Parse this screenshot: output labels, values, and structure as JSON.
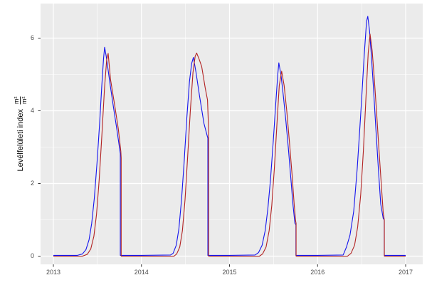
{
  "figure": {
    "background": "#FFFFFF",
    "panel_background": "#EBEBEB",
    "grid_color": "#FFFFFF",
    "tick_mark_color": "#333333",
    "tick_label_color": "#4D4D4D"
  },
  "y_axis": {
    "title_text": "Levélfelületi index",
    "fraction_numerator": "m²",
    "fraction_denominator": "m²"
  },
  "chart_data": {
    "type": "line",
    "title": "",
    "xlabel": "",
    "ylabel": "Levélfelületi index (m²/m²)",
    "grid": true,
    "legend": "none",
    "x_domain": [
      2012.8545,
      2017.1939
    ],
    "y_domain": [
      -0.2255,
      6.951
    ],
    "x_major_ticks": [
      2013,
      2014,
      2015,
      2016,
      2017
    ],
    "x_tick_labels": [
      "2013",
      "2014",
      "2015",
      "2016",
      "2017"
    ],
    "x_minor_ticks": [
      2013.5,
      2014.5,
      2015.5,
      2016.5
    ],
    "y_major_ticks": [
      0,
      2,
      4,
      6
    ],
    "y_tick_labels": [
      "0",
      "2",
      "4",
      "6"
    ],
    "y_minor_ticks": [
      1,
      3,
      5
    ],
    "series": [
      {
        "name": "series-blue",
        "color": "#1414EE",
        "points": [
          [
            2013.0,
            0.02
          ],
          [
            2013.27,
            0.02
          ],
          [
            2013.33,
            0.06
          ],
          [
            2013.37,
            0.18
          ],
          [
            2013.405,
            0.45
          ],
          [
            2013.435,
            0.9
          ],
          [
            2013.465,
            1.6
          ],
          [
            2013.495,
            2.55
          ],
          [
            2013.525,
            3.65
          ],
          [
            2013.55,
            4.7
          ],
          [
            2013.57,
            5.45
          ],
          [
            2013.582,
            5.75
          ],
          [
            2013.6,
            5.5
          ],
          [
            2013.644,
            4.73
          ],
          [
            2013.684,
            4.07
          ],
          [
            2013.725,
            3.42
          ],
          [
            2013.76,
            2.82
          ],
          [
            2013.76,
            0.02
          ],
          [
            2014.0,
            0.02
          ],
          [
            2014.33,
            0.03
          ],
          [
            2014.36,
            0.08
          ],
          [
            2014.395,
            0.3
          ],
          [
            2014.425,
            0.75
          ],
          [
            2014.455,
            1.55
          ],
          [
            2014.485,
            2.6
          ],
          [
            2014.515,
            3.8
          ],
          [
            2014.545,
            4.8
          ],
          [
            2014.57,
            5.3
          ],
          [
            2014.59,
            5.47
          ],
          [
            2014.62,
            5.05
          ],
          [
            2014.66,
            4.4
          ],
          [
            2014.71,
            3.65
          ],
          [
            2014.75,
            3.28
          ],
          [
            2014.754,
            3.25
          ],
          [
            2014.754,
            0.02
          ],
          [
            2015.0,
            0.02
          ],
          [
            2015.29,
            0.03
          ],
          [
            2015.33,
            0.1
          ],
          [
            2015.37,
            0.3
          ],
          [
            2015.405,
            0.7
          ],
          [
            2015.435,
            1.3
          ],
          [
            2015.465,
            2.1
          ],
          [
            2015.495,
            3.1
          ],
          [
            2015.525,
            4.2
          ],
          [
            2015.548,
            5.0
          ],
          [
            2015.56,
            5.32
          ],
          [
            2015.586,
            4.96
          ],
          [
            2015.613,
            4.37
          ],
          [
            2015.64,
            3.72
          ],
          [
            2015.667,
            3.0
          ],
          [
            2015.694,
            2.21
          ],
          [
            2015.72,
            1.43
          ],
          [
            2015.742,
            0.91
          ],
          [
            2015.754,
            0.86
          ],
          [
            2015.754,
            0.02
          ],
          [
            2016.0,
            0.02
          ],
          [
            2016.29,
            0.03
          ],
          [
            2016.328,
            0.25
          ],
          [
            2016.368,
            0.58
          ],
          [
            2016.41,
            1.23
          ],
          [
            2016.45,
            2.41
          ],
          [
            2016.49,
            3.91
          ],
          [
            2016.53,
            5.55
          ],
          [
            2016.556,
            6.46
          ],
          [
            2016.57,
            6.6
          ],
          [
            2016.59,
            6.2
          ],
          [
            2016.61,
            5.55
          ],
          [
            2016.636,
            4.57
          ],
          [
            2016.663,
            3.46
          ],
          [
            2016.69,
            2.41
          ],
          [
            2016.717,
            1.43
          ],
          [
            2016.745,
            1.04
          ],
          [
            2016.757,
            1.0
          ],
          [
            2016.757,
            0.02
          ],
          [
            2017.0,
            0.02
          ]
        ]
      },
      {
        "name": "series-red",
        "color": "#B22222",
        "points": [
          [
            2013.0,
            0.0
          ],
          [
            2013.33,
            0.0
          ],
          [
            2013.385,
            0.05
          ],
          [
            2013.425,
            0.2
          ],
          [
            2013.46,
            0.55
          ],
          [
            2013.49,
            1.15
          ],
          [
            2013.52,
            2.1
          ],
          [
            2013.55,
            3.3
          ],
          [
            2013.58,
            4.6
          ],
          [
            2013.605,
            5.4
          ],
          [
            2013.622,
            5.58
          ],
          [
            2013.649,
            4.86
          ],
          [
            2013.697,
            4.14
          ],
          [
            2013.738,
            3.49
          ],
          [
            2013.766,
            2.88
          ],
          [
            2013.77,
            2.7
          ],
          [
            2013.77,
            0.0
          ],
          [
            2014.0,
            0.0
          ],
          [
            2014.37,
            0.0
          ],
          [
            2014.4,
            0.06
          ],
          [
            2014.435,
            0.25
          ],
          [
            2014.465,
            0.7
          ],
          [
            2014.495,
            1.55
          ],
          [
            2014.525,
            2.75
          ],
          [
            2014.555,
            4.0
          ],
          [
            2014.585,
            5.05
          ],
          [
            2014.61,
            5.5
          ],
          [
            2014.627,
            5.59
          ],
          [
            2014.655,
            5.42
          ],
          [
            2014.684,
            5.22
          ],
          [
            2014.724,
            4.63
          ],
          [
            2014.75,
            4.3
          ],
          [
            2014.762,
            3.5
          ],
          [
            2014.762,
            0.0
          ],
          [
            2015.0,
            0.0
          ],
          [
            2015.34,
            0.0
          ],
          [
            2015.375,
            0.06
          ],
          [
            2015.415,
            0.25
          ],
          [
            2015.45,
            0.7
          ],
          [
            2015.48,
            1.4
          ],
          [
            2015.51,
            2.45
          ],
          [
            2015.54,
            3.7
          ],
          [
            2015.565,
            4.7
          ],
          [
            2015.592,
            5.09
          ],
          [
            2015.62,
            4.7
          ],
          [
            2015.65,
            4.0
          ],
          [
            2015.68,
            3.15
          ],
          [
            2015.71,
            2.25
          ],
          [
            2015.735,
            1.4
          ],
          [
            2015.75,
            0.98
          ],
          [
            2015.756,
            0.9
          ],
          [
            2015.756,
            0.0
          ],
          [
            2016.0,
            0.0
          ],
          [
            2016.34,
            0.0
          ],
          [
            2016.38,
            0.08
          ],
          [
            2016.42,
            0.3
          ],
          [
            2016.455,
            0.8
          ],
          [
            2016.49,
            1.7
          ],
          [
            2016.52,
            2.9
          ],
          [
            2016.55,
            4.4
          ],
          [
            2016.575,
            5.6
          ],
          [
            2016.596,
            6.11
          ],
          [
            2016.62,
            5.65
          ],
          [
            2016.645,
            4.85
          ],
          [
            2016.67,
            3.95
          ],
          [
            2016.695,
            3.0
          ],
          [
            2016.72,
            2.1
          ],
          [
            2016.745,
            1.2
          ],
          [
            2016.756,
            1.02
          ],
          [
            2016.758,
            0.98
          ],
          [
            2016.758,
            0.0
          ],
          [
            2017.0,
            0.0
          ]
        ]
      }
    ]
  }
}
